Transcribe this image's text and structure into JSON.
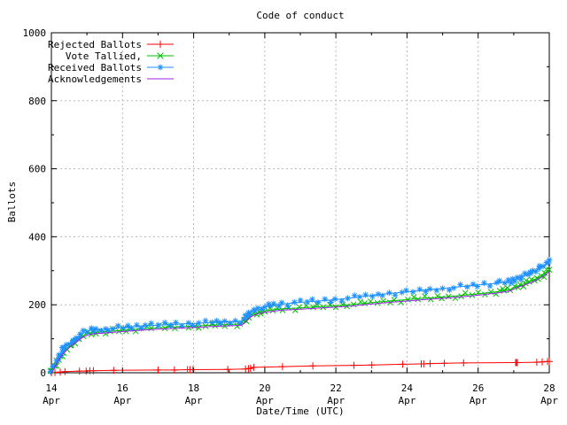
{
  "title": "Code of conduct",
  "axes": {
    "xlabel": "Date/Time (UTC)",
    "ylabel": "Ballots"
  },
  "chart_data": {
    "type": "line",
    "title": "Code of conduct",
    "xlabel": "Date/Time (UTC)",
    "ylabel": "Ballots",
    "xlim": [
      14,
      28
    ],
    "ylim": [
      0,
      1000
    ],
    "x_axis": {
      "unit": "day of April (UTC)",
      "major_ticks": [
        14,
        16,
        18,
        20,
        22,
        24,
        26,
        28
      ],
      "tick_label_line2": "Apr",
      "minor_tick_step_days": 1
    },
    "y_axis": {
      "major_ticks": [
        0,
        200,
        400,
        600,
        800,
        1000
      ],
      "minor_ticks": [
        100,
        300,
        500,
        700,
        900
      ]
    },
    "grid": {
      "show": true,
      "color": "#b8b8b8"
    },
    "legend": {
      "position": "top-left-inside"
    },
    "series": [
      {
        "name": "Rejected Ballots",
        "color": "#ff0000",
        "marker": "plus",
        "dense": false,
        "x": [
          14.0,
          14.1,
          14.25,
          14.38,
          14.79,
          14.98,
          15.08,
          15.18,
          15.75,
          17.0,
          17.46,
          17.83,
          17.9,
          17.98,
          18.96,
          19.46,
          19.54,
          19.6,
          19.69,
          20.5,
          21.35,
          22.51,
          23.01,
          23.88,
          24.4,
          24.47,
          24.65,
          25.05,
          25.59,
          27.05,
          27.08,
          27.1,
          27.65,
          27.8,
          27.95,
          28.0
        ],
        "y": [
          0,
          1,
          2,
          3,
          5,
          5,
          6,
          6,
          7,
          8,
          8,
          9,
          9,
          9,
          10,
          11,
          12,
          13,
          16,
          18,
          20,
          22,
          23,
          25,
          26,
          26,
          27,
          28,
          29,
          30,
          30,
          30,
          31,
          32,
          33,
          33
        ]
      },
      {
        "name": "Vote Tallied,",
        "color": "#00c000",
        "marker": "cross",
        "dense": true,
        "x": [
          14.0,
          14.04,
          14.08,
          14.12,
          14.17,
          14.21,
          14.25,
          14.33,
          14.42,
          14.5,
          14.58,
          14.67,
          14.75,
          14.83,
          14.92,
          15.0,
          15.1,
          15.25,
          15.5,
          15.75,
          16.0,
          16.25,
          16.5,
          17.0,
          17.33,
          17.5,
          18.0,
          18.5,
          18.75,
          19.0,
          19.2,
          19.33,
          19.42,
          19.5,
          19.58,
          19.67,
          19.83,
          20.0,
          20.25,
          20.5,
          21.0,
          21.5,
          22.0,
          22.5,
          23.0,
          23.5,
          24.0,
          24.5,
          25.0,
          25.5,
          26.0,
          26.5,
          26.75,
          26.9,
          27.0,
          27.1,
          27.25,
          27.5,
          27.75,
          27.9,
          28.0
        ],
        "y": [
          0,
          8,
          16,
          25,
          34,
          42,
          49,
          60,
          70,
          78,
          85,
          92,
          99,
          105,
          110,
          114,
          117,
          119,
          121,
          123,
          125,
          127,
          129,
          132,
          134,
          135,
          137,
          140,
          141,
          142,
          143,
          144,
          149,
          158,
          166,
          172,
          178,
          182,
          185,
          188,
          191,
          194,
          197,
          201,
          206,
          211,
          215,
          219,
          223,
          227,
          232,
          238,
          242,
          245,
          250,
          255,
          260,
          270,
          283,
          293,
          303
        ]
      },
      {
        "name": "Received Ballots",
        "color": "#1e90ff",
        "marker": "asterisk",
        "dense": true,
        "x": [
          14.0,
          14.04,
          14.08,
          14.12,
          14.17,
          14.21,
          14.25,
          14.33,
          14.42,
          14.5,
          14.58,
          14.67,
          14.75,
          14.83,
          14.92,
          15.0,
          15.1,
          15.25,
          15.5,
          15.75,
          16.0,
          16.25,
          16.5,
          17.0,
          17.33,
          17.5,
          18.0,
          18.5,
          18.75,
          19.0,
          19.2,
          19.33,
          19.42,
          19.5,
          19.58,
          19.67,
          19.83,
          20.0,
          20.25,
          20.5,
          21.0,
          21.5,
          22.0,
          22.5,
          23.0,
          23.5,
          24.0,
          24.5,
          25.0,
          25.5,
          26.0,
          26.5,
          26.75,
          26.9,
          27.0,
          27.1,
          27.25,
          27.5,
          27.75,
          27.9,
          28.0
        ],
        "y": [
          3,
          12,
          22,
          32,
          42,
          50,
          57,
          68,
          78,
          86,
          93,
          100,
          107,
          113,
          118,
          122,
          125,
          127,
          129,
          131,
          133,
          135,
          137,
          140,
          142,
          143,
          145,
          148,
          149,
          150,
          151,
          152,
          158,
          168,
          177,
          183,
          190,
          195,
          199,
          202,
          207,
          211,
          215,
          221,
          227,
          233,
          238,
          243,
          248,
          253,
          258,
          263,
          266,
          268,
          272,
          278,
          283,
          295,
          308,
          318,
          332
        ]
      },
      {
        "name": "Acknowledgements",
        "color": "#a020f0",
        "marker": "none",
        "dense": false,
        "x": [
          14.0,
          14.04,
          14.08,
          14.12,
          14.17,
          14.21,
          14.25,
          14.33,
          14.42,
          14.5,
          14.58,
          14.67,
          14.75,
          14.83,
          14.92,
          15.0,
          15.1,
          15.25,
          15.5,
          15.75,
          16.0,
          16.25,
          16.5,
          17.0,
          17.33,
          17.5,
          18.0,
          18.5,
          18.75,
          19.0,
          19.2,
          19.33,
          19.42,
          19.5,
          19.58,
          19.67,
          19.83,
          20.0,
          20.25,
          20.5,
          21.0,
          21.5,
          22.0,
          22.5,
          23.0,
          23.5,
          24.0,
          24.5,
          25.0,
          25.5,
          26.0,
          26.5,
          26.75,
          26.9,
          27.0,
          27.1,
          27.25,
          27.5,
          27.75,
          27.9,
          28.0
        ],
        "y": [
          0,
          6,
          13,
          22,
          30,
          38,
          45,
          56,
          66,
          74,
          81,
          88,
          95,
          101,
          106,
          110,
          113,
          115,
          117,
          119,
          121,
          123,
          125,
          128,
          130,
          131,
          133,
          136,
          137,
          138,
          139,
          140,
          145,
          154,
          162,
          168,
          174,
          178,
          181,
          184,
          187,
          190,
          193,
          197,
          202,
          207,
          211,
          215,
          219,
          223,
          228,
          234,
          238,
          241,
          246,
          251,
          256,
          266,
          279,
          289,
          298
        ]
      }
    ]
  }
}
